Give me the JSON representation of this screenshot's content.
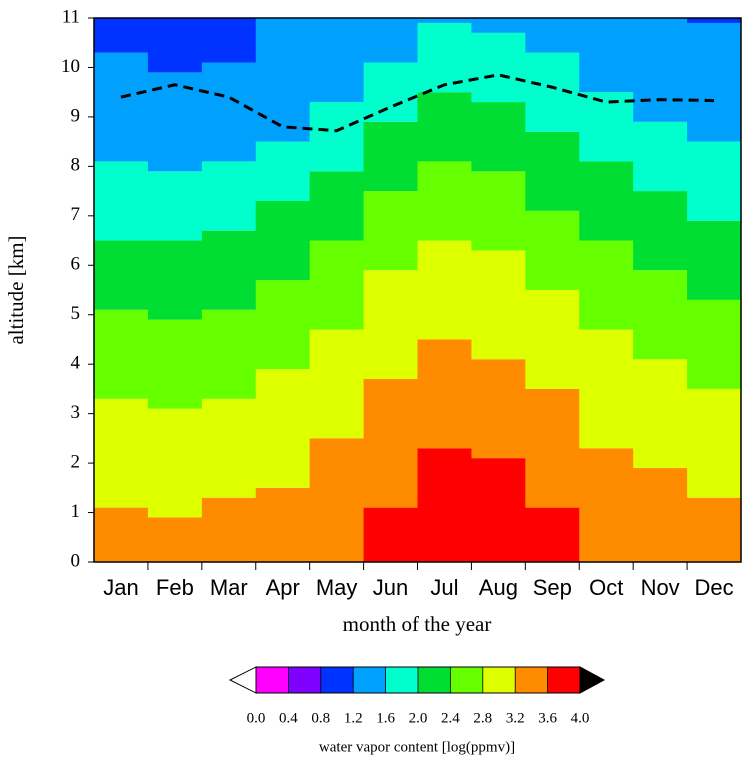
{
  "chart_data": {
    "type": "step-contour",
    "xlabel": "month of the year",
    "ylabel": "altitude [km]",
    "categories": [
      "Jan",
      "Feb",
      "Mar",
      "Apr",
      "May",
      "Jun",
      "Jul",
      "Aug",
      "Sep",
      "Oct",
      "Nov",
      "Dec"
    ],
    "ylim": [
      0,
      11
    ],
    "yticks": [
      0,
      1,
      2,
      3,
      4,
      5,
      6,
      7,
      8,
      9,
      10,
      11
    ],
    "bands": [
      {
        "color": "#ff0000",
        "upper": [
          null,
          null,
          null,
          null,
          null,
          1.1,
          2.3,
          2.1,
          1.1,
          null,
          null,
          null
        ]
      },
      {
        "color": "#ff8c00",
        "upper": [
          1.1,
          0.9,
          1.3,
          1.5,
          2.5,
          3.7,
          4.5,
          4.1,
          3.5,
          2.3,
          1.9,
          1.3
        ]
      },
      {
        "color": "#ddff00",
        "upper": [
          3.3,
          3.1,
          3.3,
          3.9,
          4.7,
          5.9,
          6.5,
          6.3,
          5.5,
          4.7,
          4.1,
          3.5
        ]
      },
      {
        "color": "#66ff00",
        "upper": [
          5.1,
          4.9,
          5.1,
          5.7,
          6.5,
          7.5,
          8.1,
          7.9,
          7.1,
          6.5,
          5.9,
          5.3
        ]
      },
      {
        "color": "#00dd33",
        "upper": [
          6.5,
          6.5,
          6.7,
          7.3,
          7.9,
          8.9,
          9.5,
          9.3,
          8.7,
          8.1,
          7.5,
          6.9
        ]
      },
      {
        "color": "#00ffcc",
        "upper": [
          8.1,
          7.9,
          8.1,
          8.5,
          9.3,
          10.1,
          10.9,
          10.7,
          10.3,
          9.5,
          8.9,
          8.5
        ]
      },
      {
        "color": "#00a0ff",
        "upper": [
          10.3,
          9.9,
          10.1,
          11,
          11,
          11,
          11,
          11,
          11,
          11,
          11,
          10.9
        ]
      },
      {
        "color": "#0033ff",
        "upper": [
          11,
          11,
          11,
          null,
          null,
          null,
          null,
          null,
          null,
          null,
          null,
          11
        ]
      }
    ],
    "line": {
      "color": "#000000",
      "dashed": true,
      "values": [
        9.4,
        9.65,
        9.4,
        8.8,
        8.72,
        9.2,
        9.65,
        9.85,
        9.6,
        9.3,
        9.35,
        9.33
      ]
    },
    "colorbar": {
      "label": "water vapor content [log(ppmv)]",
      "clim": [
        0,
        4
      ],
      "colors": [
        "#ff00ff",
        "#7f00ff",
        "#0033ff",
        "#00a0ff",
        "#00ffcc",
        "#00dd33",
        "#66ff00",
        "#ddff00",
        "#ff8c00",
        "#ff0000"
      ],
      "under": "#ffffff",
      "over": "#000000",
      "ticks": [
        {
          "value": 0,
          "label": "0.0"
        },
        0.4,
        0.8,
        1.2,
        1.6,
        {
          "value": 2,
          "label": "2.0"
        },
        2.4,
        2.8,
        3.2,
        3.6,
        {
          "value": 4,
          "label": "4.0"
        }
      ]
    }
  }
}
